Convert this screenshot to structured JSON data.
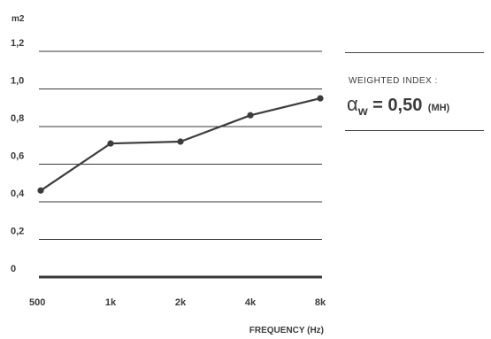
{
  "chart_data": {
    "type": "line",
    "categories": [
      "500",
      "1k",
      "2k",
      "4k",
      "8k"
    ],
    "values": [
      0.46,
      0.71,
      0.72,
      0.86,
      0.95
    ],
    "ylabel": "m2",
    "xlabel": "FREQUENCY (Hz)",
    "ylim": [
      0,
      1.2
    ],
    "yticks": [
      0,
      0.2,
      0.4,
      0.6,
      0.8,
      1.0,
      1.2
    ],
    "ytick_labels": [
      "0",
      "0,2",
      "0,4",
      "0,6",
      "0,8",
      "1,0",
      "1,2"
    ],
    "grid": true,
    "line_color": "#3c3c3c"
  },
  "weighted_index": {
    "title": "WEIGHTED INDEX :",
    "symbol": "α",
    "subscript": "w",
    "equals_value": " = 0,50",
    "qualifier": "(MH)"
  }
}
